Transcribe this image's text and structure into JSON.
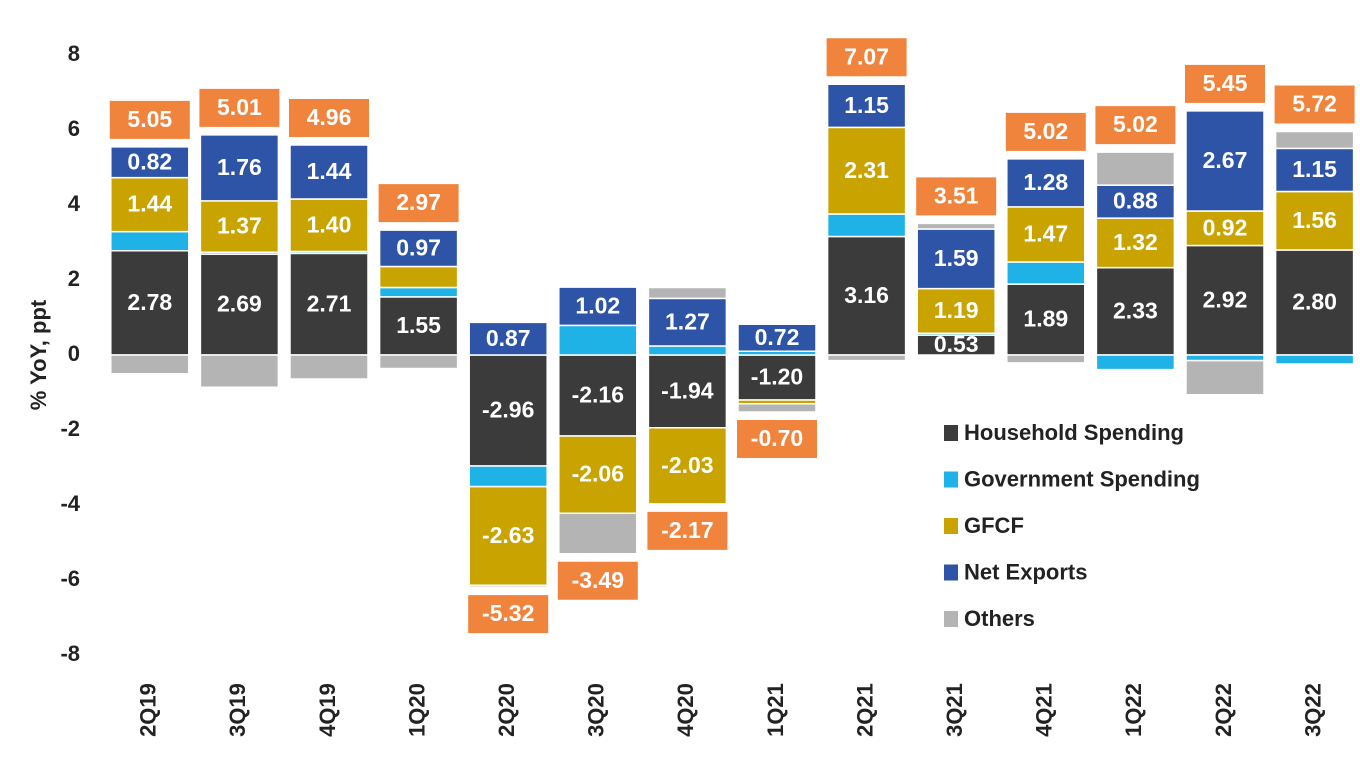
{
  "chart_data": {
    "type": "stacked_bar",
    "y_label": "% YoY, ppt",
    "categories": [
      "2Q19",
      "3Q19",
      "4Q19",
      "1Q20",
      "2Q20",
      "3Q20",
      "4Q20",
      "1Q21",
      "2Q21",
      "3Q21",
      "4Q21",
      "1Q22",
      "2Q22",
      "3Q22"
    ],
    "series": [
      {
        "name": "Household Spending",
        "color": "#3b3b3b",
        "values": [
          2.78,
          2.69,
          2.71,
          1.55,
          -2.96,
          -2.16,
          -1.94,
          -1.2,
          3.16,
          0.53,
          1.89,
          2.33,
          2.92,
          2.8
        ],
        "value_labels": [
          "2.78",
          "2.69",
          "2.71",
          "1.55",
          "-2.96",
          "-2.16",
          "-1.94",
          "-1.20",
          "3.16",
          "0.53",
          "1.89",
          "2.33",
          "2.92",
          "2.80"
        ]
      },
      {
        "name": "Government Spending",
        "color": "#1fb2e6",
        "values": [
          0.51,
          0.05,
          0.05,
          0.25,
          -0.55,
          0.79,
          0.24,
          0.1,
          0.6,
          0.05,
          0.59,
          -0.39,
          -0.15,
          -0.24
        ]
      },
      {
        "name": "GFCF",
        "color": "#c9a300",
        "values": [
          1.44,
          1.37,
          1.4,
          0.56,
          -2.63,
          -2.06,
          -2.03,
          -0.1,
          2.31,
          1.19,
          1.47,
          1.32,
          0.92,
          1.56
        ],
        "value_labels": [
          "1.44",
          "1.37",
          "1.40",
          null,
          "-2.63",
          "-2.06",
          "-2.03",
          null,
          "2.31",
          "1.19",
          "1.47",
          "1.32",
          "0.92",
          "1.56"
        ]
      },
      {
        "name": "Net Exports",
        "color": "#2d54a6",
        "values": [
          0.82,
          1.76,
          1.44,
          0.97,
          0.87,
          1.02,
          1.27,
          0.72,
          1.15,
          1.59,
          1.28,
          0.88,
          2.67,
          1.15
        ],
        "value_labels": [
          "0.82",
          "1.76",
          "1.44",
          "0.97",
          "0.87",
          "1.02",
          "1.27",
          "0.72",
          "1.15",
          "1.59",
          "1.28",
          "0.88",
          "2.67",
          "1.15"
        ]
      },
      {
        "name": "Others",
        "color": "#b4b4b4",
        "values": [
          -0.5,
          -0.86,
          -0.64,
          -0.36,
          -0.05,
          -1.08,
          0.29,
          -0.22,
          -0.15,
          0.15,
          -0.21,
          0.88,
          -0.91,
          0.45
        ]
      }
    ],
    "totals": [
      5.05,
      5.01,
      4.96,
      2.97,
      -5.32,
      -3.49,
      -2.17,
      -0.7,
      7.07,
      3.51,
      5.02,
      5.02,
      5.45,
      5.72
    ],
    "total_labels": [
      "5.05",
      "5.01",
      "4.96",
      "2.97",
      "-5.32",
      "-3.49",
      "-2.17",
      "-0.70",
      "7.07",
      "3.51",
      "5.02",
      "5.02",
      "5.45",
      "5.72"
    ],
    "total_color": "#f0843c",
    "ylim": [
      -8,
      8
    ],
    "yticks": [
      -8,
      -6,
      -4,
      -2,
      0,
      2,
      4,
      6,
      8
    ],
    "grid": false
  }
}
